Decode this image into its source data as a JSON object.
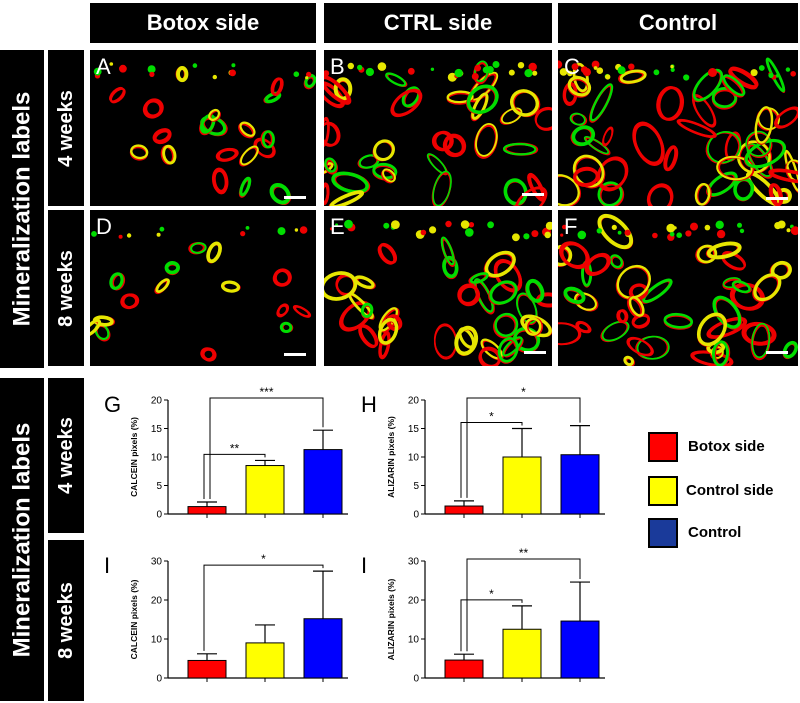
{
  "columns": [
    "Botox side",
    "CTRL side",
    "Control"
  ],
  "top_group": {
    "label": "Mineralization labels",
    "rows": [
      "4 weeks",
      "8 weeks"
    ]
  },
  "bottom_group": {
    "label": "Mineralization labels",
    "rows": [
      "4 weeks",
      "8 weeks"
    ]
  },
  "panels": [
    "A",
    "B",
    "C",
    "D",
    "E",
    "F"
  ],
  "colors": {
    "botox": "#ff0000",
    "control_side": "#ffff00",
    "control": "#0000ff",
    "label_green": "#00dd00",
    "label_red": "#ee0000",
    "label_yellow": "#e6e600"
  },
  "legend": [
    {
      "label": "Botox side",
      "color": "#ff0000"
    },
    {
      "label": "Control side",
      "color": "#ffff00"
    },
    {
      "label": "Control",
      "color": "#1a3a9a"
    }
  ],
  "chart_data": [
    {
      "panel": "G",
      "type": "bar",
      "ylabel": "CALCEIN pixels (%)",
      "ylim": [
        0,
        20
      ],
      "yticks": [
        0,
        5,
        10,
        15,
        20
      ],
      "categories": [
        "Botox side",
        "Control side",
        "Control"
      ],
      "values": [
        1.3,
        8.5,
        11.3
      ],
      "errors": [
        0.8,
        0.9,
        3.4
      ],
      "significance": [
        {
          "from": 0,
          "to": 1,
          "label": "**"
        },
        {
          "from": 0,
          "to": 2,
          "label": "***"
        }
      ]
    },
    {
      "panel": "H",
      "type": "bar",
      "ylabel": "ALIZARIN pixels (%)",
      "ylim": [
        0,
        20
      ],
      "yticks": [
        0,
        5,
        10,
        15,
        20
      ],
      "categories": [
        "Botox side",
        "Control side",
        "Control"
      ],
      "values": [
        1.4,
        10.0,
        10.4
      ],
      "errors": [
        0.9,
        5.0,
        5.1
      ],
      "significance": [
        {
          "from": 0,
          "to": 1,
          "label": "*"
        },
        {
          "from": 0,
          "to": 2,
          "label": "*"
        }
      ]
    },
    {
      "panel": "I",
      "type": "bar",
      "ylabel": "CALCEIN pixels (%)",
      "ylim": [
        0,
        30
      ],
      "yticks": [
        0,
        10,
        20,
        30
      ],
      "categories": [
        "Botox side",
        "Control side",
        "Control"
      ],
      "values": [
        4.5,
        9.0,
        15.2
      ],
      "errors": [
        1.7,
        4.6,
        12.2
      ],
      "significance": [
        {
          "from": 0,
          "to": 2,
          "label": "*"
        }
      ]
    },
    {
      "panel": "I",
      "type": "bar",
      "ylabel": "ALIZARIN pixels (%)",
      "ylim": [
        0,
        30
      ],
      "yticks": [
        0,
        10,
        20,
        30
      ],
      "categories": [
        "Botox side",
        "Control side",
        "Control"
      ],
      "values": [
        4.6,
        12.5,
        14.6
      ],
      "errors": [
        1.5,
        6.0,
        10.0
      ],
      "significance": [
        {
          "from": 0,
          "to": 1,
          "label": "*"
        },
        {
          "from": 0,
          "to": 2,
          "label": "**"
        }
      ]
    }
  ]
}
